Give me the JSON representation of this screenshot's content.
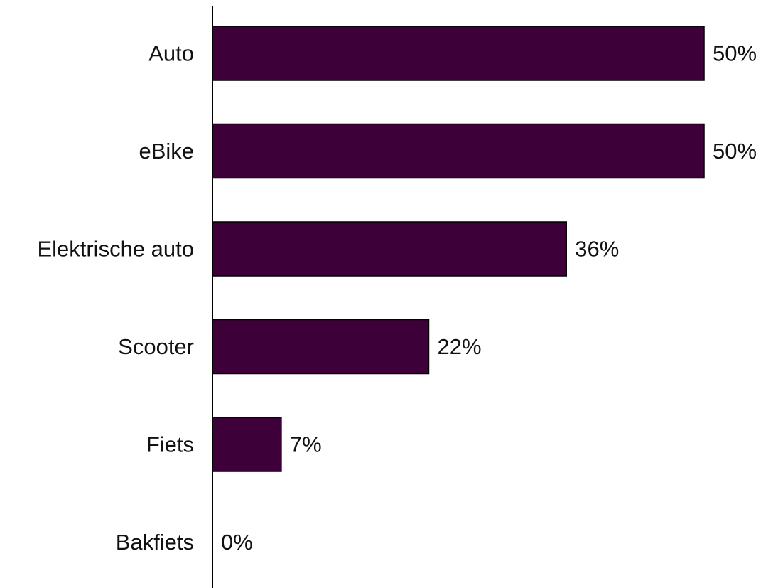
{
  "chart_data": {
    "type": "bar",
    "orientation": "horizontal",
    "categories": [
      "Auto",
      "eBike",
      "Elektrische auto",
      "Scooter",
      "Fiets",
      "Bakfiets"
    ],
    "values": [
      50,
      50,
      36,
      22,
      7,
      0
    ],
    "value_labels": [
      "50%",
      "50%",
      "36%",
      "22%",
      "7%",
      "0%"
    ],
    "unit": "%",
    "xlim": [
      0,
      50
    ],
    "grid": false,
    "legend": "none",
    "bar_color": "#3d0039"
  }
}
